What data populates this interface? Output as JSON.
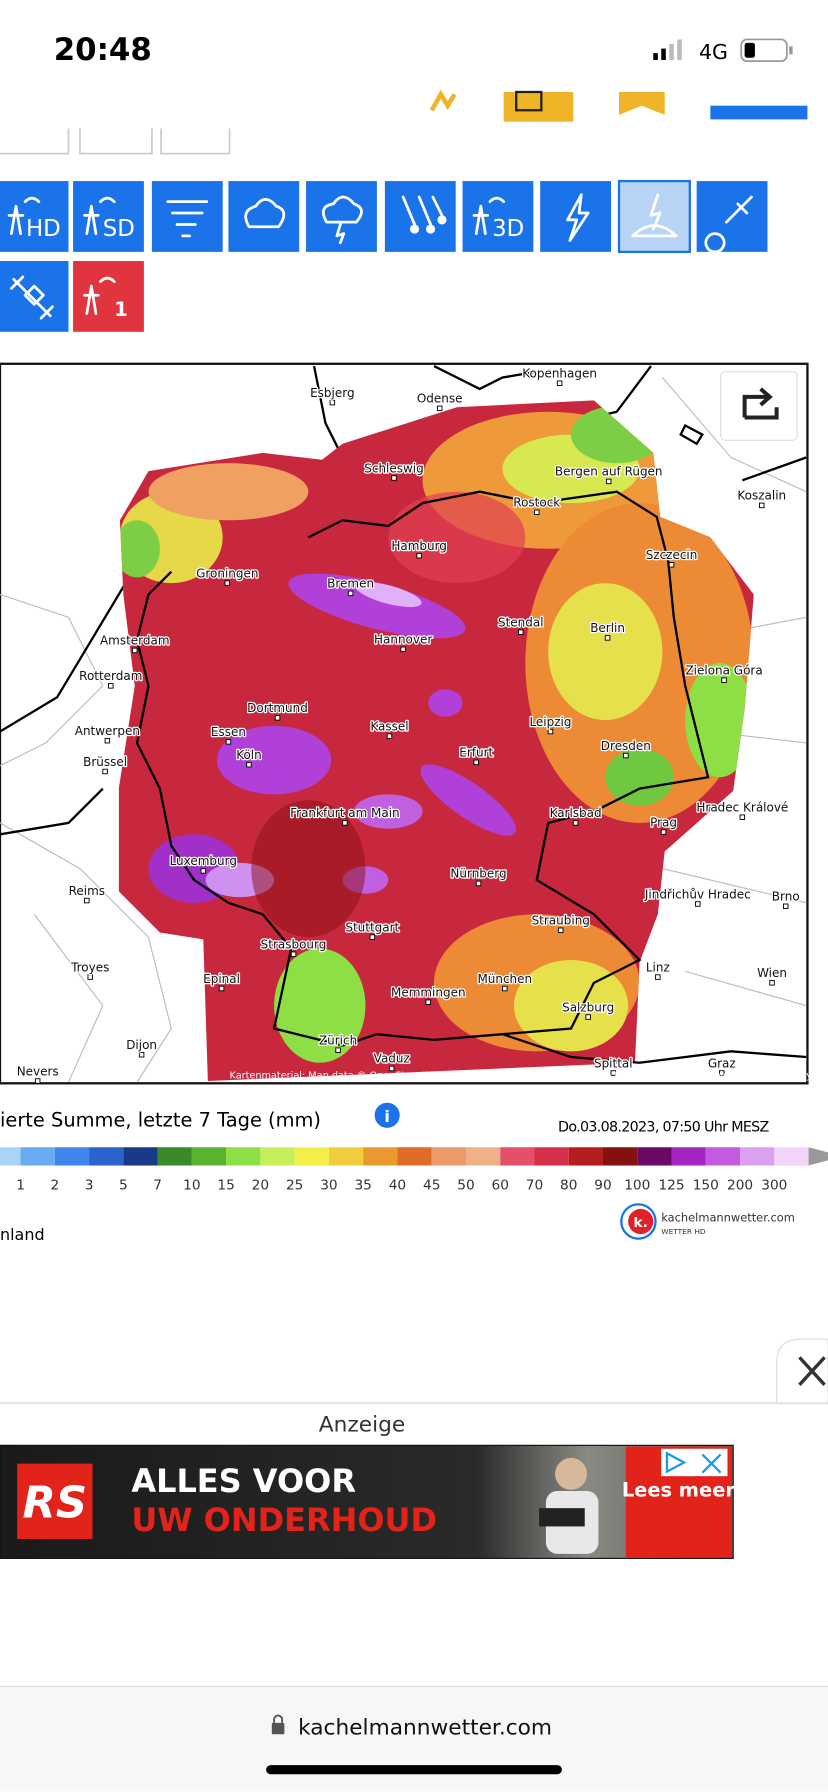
{
  "status_bar": {
    "time": "20:48",
    "network": "4G"
  },
  "tool_icons": [
    "HD",
    "SD",
    "3D",
    "1"
  ],
  "map": {
    "cities": [
      "Esbjerg",
      "Odense",
      "Kopenhagen",
      "Schleswig",
      "Bergen auf Rügen",
      "Rostock",
      "Koszalin",
      "Hamburg",
      "Szczecin",
      "Groningen",
      "Bremen",
      "Stendal",
      "Berlin",
      "Amsterdam",
      "Hannover",
      "Rotterdam",
      "Zielona Góra",
      "Dortmund",
      "Antwerpen",
      "Essen",
      "Kassel",
      "Leipzig",
      "Brüssel",
      "Köln",
      "Erfurt",
      "Dresden",
      "Frankfurt am Main",
      "Karlsbad",
      "Prag",
      "Hradec Králové",
      "Luxemburg",
      "Nürnberg",
      "Reims",
      "Jindřichův Hradec",
      "Brno",
      "Straubing",
      "Stuttgart",
      "Strasbourg",
      "Troyes",
      "Linz",
      "Wien",
      "Epinal",
      "München",
      "Memmingen",
      "Salzburg",
      "Dijon",
      "Zürich",
      "Vaduz",
      "Nevers",
      "Spittal",
      "Graz"
    ],
    "attribution": "Kartenmaterial: Map data © OpenStreetMap contributors, rendering GIScience Research Group @ Heidelberg University"
  },
  "legend": {
    "title": "ierte Summe, letzte 7 Tage (mm)",
    "timestamp": "Do.03.08.2023, 07:50 Uhr MESZ",
    "ticks": [
      1,
      2,
      3,
      5,
      7,
      10,
      15,
      20,
      25,
      30,
      35,
      40,
      45,
      50,
      60,
      70,
      80,
      90,
      100,
      125,
      150,
      200,
      300
    ],
    "colors": [
      "#a8d4f8",
      "#6aacf2",
      "#3f86ea",
      "#2b62cc",
      "#183a88",
      "#3a8a2c",
      "#58b42f",
      "#8edf46",
      "#c6ee58",
      "#f4ee48",
      "#f0cd3c",
      "#e89a30",
      "#e06b26",
      "#ec9a6a",
      "#f0b088",
      "#e4506a",
      "#d6304a",
      "#b41e1e",
      "#861010",
      "#6a0a66",
      "#a424c4",
      "#c45ae0",
      "#dca0f0",
      "#f0d4fa"
    ]
  },
  "region_label": "nland",
  "logo": {
    "mark": "k.",
    "name": "kachelmannwetter.com",
    "tagline": "WETTER HD"
  },
  "ad": {
    "label": "Anzeige",
    "brand": "RS",
    "headline": "ALLES VOOR",
    "subline": "UW ONDERHOUD",
    "cta": "Lees meer"
  },
  "browser": {
    "url": "kachelmannwetter.com"
  }
}
